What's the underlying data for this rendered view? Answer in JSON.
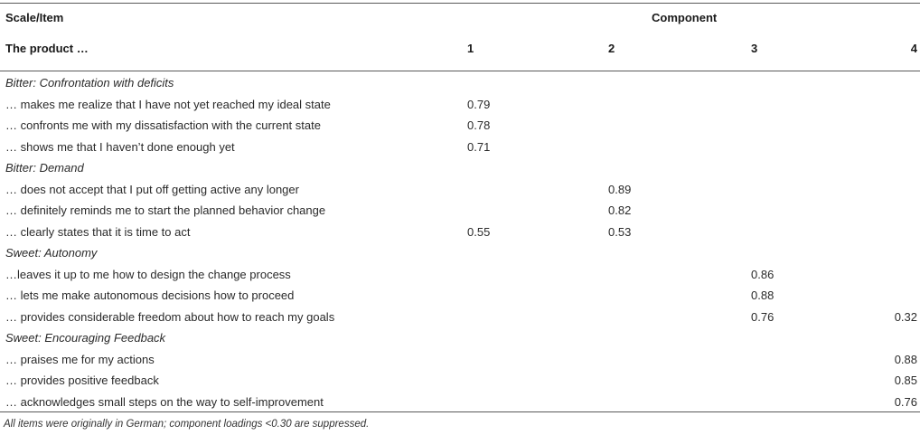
{
  "header": {
    "scale_item": "Scale/Item",
    "component": "Component",
    "product": "The product …",
    "col1": "1",
    "col2": "2",
    "col3": "3",
    "col4": "4"
  },
  "rows": [
    {
      "type": "group",
      "label": "Bitter: Confrontation with deficits",
      "c1": "",
      "c2": "",
      "c3": "",
      "c4": ""
    },
    {
      "type": "item",
      "label": "… makes me realize that I have not yet reached my ideal state",
      "c1": "0.79",
      "c2": "",
      "c3": "",
      "c4": ""
    },
    {
      "type": "item",
      "label": "… confronts me with my dissatisfaction with the current state",
      "c1": "0.78",
      "c2": "",
      "c3": "",
      "c4": ""
    },
    {
      "type": "item",
      "label": "… shows me that I haven’t done enough yet",
      "c1": "0.71",
      "c2": "",
      "c3": "",
      "c4": ""
    },
    {
      "type": "group",
      "label": "Bitter: Demand",
      "c1": "",
      "c2": "",
      "c3": "",
      "c4": ""
    },
    {
      "type": "item",
      "label": "… does not accept that I put off getting active any longer",
      "c1": "",
      "c2": "0.89",
      "c3": "",
      "c4": ""
    },
    {
      "type": "item",
      "label": "… definitely reminds me to start the planned behavior change",
      "c1": "",
      "c2": "0.82",
      "c3": "",
      "c4": ""
    },
    {
      "type": "item",
      "label": "… clearly states that it is time to act",
      "c1": "0.55",
      "c2": "0.53",
      "c3": "",
      "c4": ""
    },
    {
      "type": "group",
      "label": "Sweet: Autonomy",
      "c1": "",
      "c2": "",
      "c3": "",
      "c4": ""
    },
    {
      "type": "item",
      "label": "…leaves it up to me how to design the change process",
      "c1": "",
      "c2": "",
      "c3": "0.86",
      "c4": ""
    },
    {
      "type": "item",
      "label": "… lets me make autonomous decisions how to proceed",
      "c1": "",
      "c2": "",
      "c3": "0.88",
      "c4": ""
    },
    {
      "type": "item",
      "label": "… provides considerable freedom about how to reach my goals",
      "c1": "",
      "c2": "",
      "c3": "0.76",
      "c4": "0.32"
    },
    {
      "type": "group",
      "label": "Sweet: Encouraging Feedback",
      "c1": "",
      "c2": "",
      "c3": "",
      "c4": ""
    },
    {
      "type": "item",
      "label": "… praises me for my actions",
      "c1": "",
      "c2": "",
      "c3": "",
      "c4": "0.88"
    },
    {
      "type": "item",
      "label": "… provides positive feedback",
      "c1": "",
      "c2": "",
      "c3": "",
      "c4": "0.85"
    },
    {
      "type": "item",
      "label": "… acknowledges small steps on the way to self-improvement",
      "c1": "",
      "c2": "",
      "c3": "",
      "c4": "0.76"
    }
  ],
  "footnote": "All items were originally in German; component loadings <0.30 are suppressed."
}
